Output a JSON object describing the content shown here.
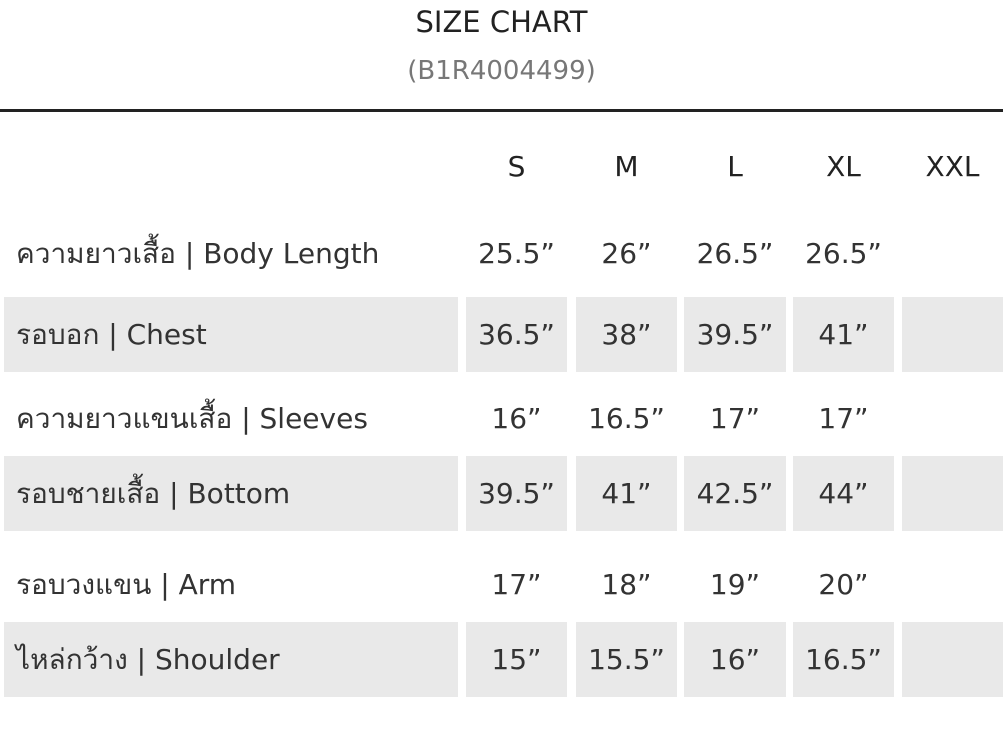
{
  "title": "SIZE CHART",
  "subtitle": "(B1R4004499)",
  "sizes": [
    "S",
    "M",
    "L",
    "XL",
    "XXL"
  ],
  "rows": [
    {
      "label": "ความยาวเสื้อ | Body Length",
      "values": [
        "25.5”",
        "26”",
        "26.5”",
        "26.5”",
        ""
      ]
    },
    {
      "label": "รอบอก | Chest",
      "values": [
        "36.5”",
        "38”",
        "39.5”",
        "41”",
        ""
      ]
    },
    {
      "label": "ความยาวแขนเสื้อ | Sleeves",
      "values": [
        "16”",
        "16.5”",
        "17”",
        "17”",
        ""
      ]
    },
    {
      "label": "รอบชายเสื้อ | Bottom",
      "values": [
        "39.5”",
        "41”",
        "42.5”",
        "44”",
        ""
      ]
    },
    {
      "label": "รอบวงแขน | Arm",
      "values": [
        "17”",
        "18”",
        "19”",
        "20”",
        ""
      ]
    },
    {
      "label": "ไหล่กว้าง | Shoulder",
      "values": [
        "15”",
        "15.5”",
        "16”",
        "16.5”",
        ""
      ]
    }
  ]
}
